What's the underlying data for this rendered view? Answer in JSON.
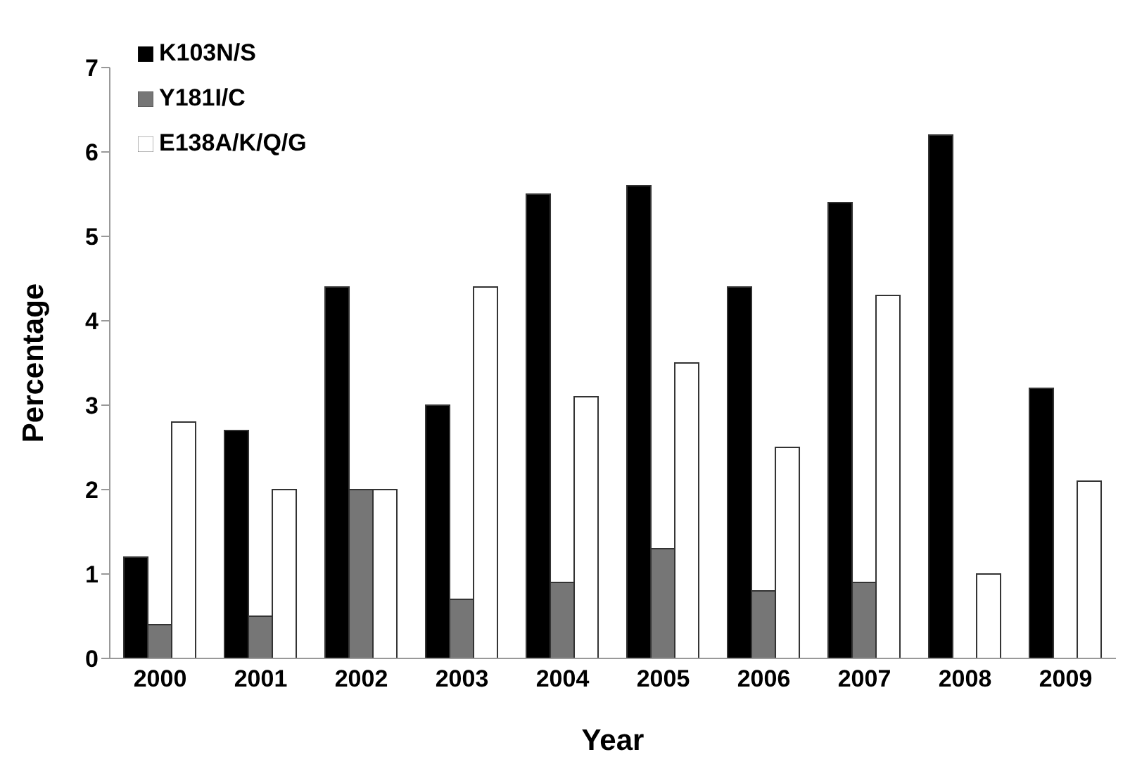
{
  "chart_data": {
    "type": "bar",
    "xlabel": "Year",
    "ylabel": "Percentage",
    "categories": [
      "2000",
      "2001",
      "2002",
      "2003",
      "2004",
      "2005",
      "2006",
      "2007",
      "2008",
      "2009"
    ],
    "series": [
      {
        "name": "K103N/S",
        "color": "#000000",
        "values": [
          1.2,
          2.7,
          4.4,
          3.0,
          5.5,
          5.6,
          4.4,
          5.4,
          6.2,
          3.2
        ]
      },
      {
        "name": "Y181I/C",
        "color": "#767676",
        "values": [
          0.4,
          0.5,
          2.0,
          0.7,
          0.9,
          1.3,
          0.8,
          0.9,
          null,
          null
        ]
      },
      {
        "name": "E138A/K/Q/G",
        "color": "#ffffff",
        "values": [
          2.8,
          2.0,
          2.0,
          4.4,
          3.1,
          3.5,
          2.5,
          4.3,
          1.0,
          2.1
        ]
      }
    ],
    "ylim": [
      0,
      7
    ],
    "yticks": [
      0,
      1,
      2,
      3,
      4,
      5,
      6,
      7
    ],
    "grid": false,
    "legend": "top left"
  }
}
